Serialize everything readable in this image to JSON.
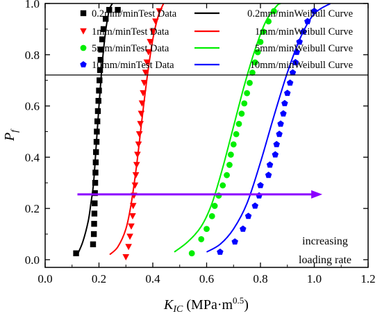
{
  "chart_data": {
    "type": "scatter",
    "xlabel": {
      "main": "K",
      "sub": "IC",
      "unit_open": " (MPa·m",
      "unit_sup": "0.5",
      "unit_close": ")"
    },
    "ylabel": {
      "main": "P",
      "sub": "f"
    },
    "xlim": [
      0.0,
      1.2
    ],
    "ylim": [
      -0.03,
      1.0
    ],
    "x_ticks": [
      "0.0",
      "0.2",
      "0.4",
      "0.6",
      "0.8",
      "1.0",
      "1.2"
    ],
    "y_ticks": [
      "0.0",
      "0.2",
      "0.4",
      "0.6",
      "0.8",
      "1.0"
    ],
    "x_tick_values": [
      0.0,
      0.2,
      0.4,
      0.6,
      0.8,
      1.0,
      1.2
    ],
    "y_tick_values": [
      0.0,
      0.2,
      0.4,
      0.6,
      0.8,
      1.0
    ],
    "legend_position": "top",
    "annotation": {
      "lines": [
        "increasing",
        "loading rate"
      ],
      "arrow_from": [
        0.12,
        0.255
      ],
      "arrow_to": [
        1.03,
        0.255
      ],
      "color": "#8B00FF"
    },
    "series": [
      {
        "name": "0.2mm/minTest Data",
        "kind": "points",
        "marker": "square",
        "color": "#000000",
        "points": [
          [
            0.115,
            0.025
          ],
          [
            0.178,
            0.06
          ],
          [
            0.181,
            0.1
          ],
          [
            0.182,
            0.14
          ],
          [
            0.183,
            0.18
          ],
          [
            0.184,
            0.22
          ],
          [
            0.185,
            0.26
          ],
          [
            0.186,
            0.3
          ],
          [
            0.187,
            0.34
          ],
          [
            0.188,
            0.38
          ],
          [
            0.189,
            0.42
          ],
          [
            0.191,
            0.46
          ],
          [
            0.192,
            0.5
          ],
          [
            0.194,
            0.54
          ],
          [
            0.196,
            0.58
          ],
          [
            0.198,
            0.62
          ],
          [
            0.2,
            0.66
          ],
          [
            0.202,
            0.7
          ],
          [
            0.204,
            0.74
          ],
          [
            0.206,
            0.78
          ],
          [
            0.208,
            0.82
          ],
          [
            0.212,
            0.86
          ],
          [
            0.217,
            0.9
          ],
          [
            0.225,
            0.94
          ],
          [
            0.238,
            0.975
          ],
          [
            0.27,
            0.975
          ]
        ]
      },
      {
        "name": "0.2mm/minWeibull Curve",
        "kind": "line",
        "color": "#000000",
        "points": [
          [
            0.12,
            0.02
          ],
          [
            0.14,
            0.07
          ],
          [
            0.16,
            0.15
          ],
          [
            0.17,
            0.22
          ],
          [
            0.18,
            0.3
          ],
          [
            0.19,
            0.45
          ],
          [
            0.2,
            0.6
          ],
          [
            0.21,
            0.74
          ],
          [
            0.22,
            0.85
          ],
          [
            0.23,
            0.93
          ],
          [
            0.24,
            0.98
          ],
          [
            0.25,
            1.0
          ]
        ]
      },
      {
        "name": "1mm/minTest Data",
        "kind": "points",
        "marker": "triangle-down",
        "color": "#FF0000",
        "points": [
          [
            0.3,
            0.01
          ],
          [
            0.31,
            0.05
          ],
          [
            0.315,
            0.09
          ],
          [
            0.32,
            0.13
          ],
          [
            0.325,
            0.17
          ],
          [
            0.327,
            0.21
          ],
          [
            0.33,
            0.25
          ],
          [
            0.334,
            0.29
          ],
          [
            0.337,
            0.33
          ],
          [
            0.34,
            0.37
          ],
          [
            0.343,
            0.41
          ],
          [
            0.347,
            0.45
          ],
          [
            0.35,
            0.49
          ],
          [
            0.354,
            0.53
          ],
          [
            0.357,
            0.57
          ],
          [
            0.36,
            0.61
          ],
          [
            0.364,
            0.65
          ],
          [
            0.368,
            0.69
          ],
          [
            0.373,
            0.73
          ],
          [
            0.378,
            0.77
          ],
          [
            0.384,
            0.81
          ],
          [
            0.39,
            0.85
          ],
          [
            0.4,
            0.89
          ],
          [
            0.41,
            0.93
          ],
          [
            0.424,
            0.97
          ]
        ]
      },
      {
        "name": "1mm/minWeibull Curve",
        "kind": "line",
        "color": "#FF0000",
        "points": [
          [
            0.24,
            0.02
          ],
          [
            0.27,
            0.05
          ],
          [
            0.3,
            0.12
          ],
          [
            0.32,
            0.22
          ],
          [
            0.34,
            0.37
          ],
          [
            0.36,
            0.55
          ],
          [
            0.38,
            0.72
          ],
          [
            0.4,
            0.86
          ],
          [
            0.42,
            0.95
          ],
          [
            0.44,
            1.0
          ]
        ]
      },
      {
        "name": "5mm/minTest Data",
        "kind": "points",
        "marker": "circle",
        "color": "#00EE00",
        "points": [
          [
            0.545,
            0.025
          ],
          [
            0.58,
            0.08
          ],
          [
            0.6,
            0.12
          ],
          [
            0.62,
            0.17
          ],
          [
            0.63,
            0.21
          ],
          [
            0.645,
            0.25
          ],
          [
            0.66,
            0.29
          ],
          [
            0.675,
            0.33
          ],
          [
            0.685,
            0.37
          ],
          [
            0.69,
            0.41
          ],
          [
            0.7,
            0.45
          ],
          [
            0.71,
            0.49
          ],
          [
            0.72,
            0.53
          ],
          [
            0.73,
            0.57
          ],
          [
            0.74,
            0.61
          ],
          [
            0.75,
            0.65
          ],
          [
            0.76,
            0.69
          ],
          [
            0.77,
            0.73
          ],
          [
            0.78,
            0.77
          ],
          [
            0.79,
            0.81
          ],
          [
            0.8,
            0.85
          ],
          [
            0.81,
            0.89
          ],
          [
            0.83,
            0.93
          ],
          [
            0.85,
            0.97
          ]
        ]
      },
      {
        "name": "5mm/minWeibull Curve",
        "kind": "line",
        "color": "#00EE00",
        "points": [
          [
            0.48,
            0.03
          ],
          [
            0.53,
            0.07
          ],
          [
            0.58,
            0.13
          ],
          [
            0.62,
            0.22
          ],
          [
            0.66,
            0.36
          ],
          [
            0.7,
            0.52
          ],
          [
            0.74,
            0.68
          ],
          [
            0.78,
            0.82
          ],
          [
            0.82,
            0.93
          ],
          [
            0.86,
            0.99
          ],
          [
            0.875,
            1.0
          ]
        ]
      },
      {
        "name": "10mm/minTest Data",
        "kind": "points",
        "marker": "pentagon",
        "color": "#0000FF",
        "points": [
          [
            0.65,
            0.03
          ],
          [
            0.705,
            0.07
          ],
          [
            0.735,
            0.12
          ],
          [
            0.755,
            0.17
          ],
          [
            0.78,
            0.21
          ],
          [
            0.795,
            0.25
          ],
          [
            0.8,
            0.29
          ],
          [
            0.83,
            0.33
          ],
          [
            0.835,
            0.37
          ],
          [
            0.855,
            0.41
          ],
          [
            0.86,
            0.45
          ],
          [
            0.87,
            0.49
          ],
          [
            0.875,
            0.53
          ],
          [
            0.885,
            0.57
          ],
          [
            0.89,
            0.61
          ],
          [
            0.9,
            0.65
          ],
          [
            0.91,
            0.69
          ],
          [
            0.92,
            0.73
          ],
          [
            0.93,
            0.77
          ],
          [
            0.935,
            0.81
          ],
          [
            0.945,
            0.85
          ],
          [
            0.96,
            0.89
          ],
          [
            0.975,
            0.93
          ],
          [
            1.0,
            0.97
          ]
        ]
      },
      {
        "name": "10mm/minWeibull Curve",
        "kind": "line",
        "color": "#0000FF",
        "points": [
          [
            0.6,
            0.03
          ],
          [
            0.65,
            0.06
          ],
          [
            0.7,
            0.12
          ],
          [
            0.75,
            0.22
          ],
          [
            0.8,
            0.38
          ],
          [
            0.85,
            0.56
          ],
          [
            0.9,
            0.73
          ],
          [
            0.95,
            0.87
          ],
          [
            1.0,
            0.96
          ],
          [
            1.06,
            1.0
          ]
        ]
      }
    ]
  }
}
